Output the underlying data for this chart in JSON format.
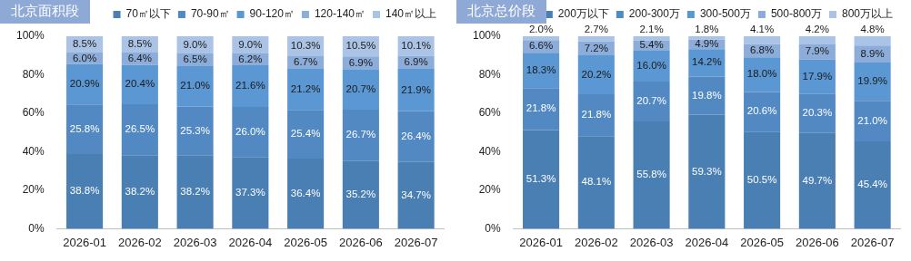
{
  "chart_data": [
    {
      "type": "bar",
      "title": "北京面积段",
      "stacked": true,
      "legend": "top",
      "grid": false,
      "categories": [
        "2026-01",
        "2026-02",
        "2026-03",
        "2026-04",
        "2026-05",
        "2026-06",
        "2026-07"
      ],
      "ylim": [
        0,
        100
      ],
      "yticks": [
        {
          "value": 0,
          "label": "0%"
        },
        {
          "value": 20,
          "label": "20%"
        },
        {
          "value": 40,
          "label": "40%"
        },
        {
          "value": 60,
          "label": "60%"
        },
        {
          "value": 80,
          "label": "80%"
        },
        {
          "value": 100,
          "label": "100%"
        }
      ],
      "series": [
        {
          "name": "70㎡以下",
          "color": "#4a7fb3",
          "values": [
            38.8,
            38.2,
            38.2,
            37.3,
            36.4,
            35.2,
            34.7
          ],
          "value_labels": [
            "38.8%",
            "38.2%",
            "38.2%",
            "37.3%",
            "36.4%",
            "35.2%",
            "34.7%"
          ]
        },
        {
          "name": "70-90㎡",
          "color": "#5289c3",
          "values": [
            25.8,
            26.5,
            25.3,
            26.0,
            25.4,
            26.7,
            26.4
          ],
          "value_labels": [
            "25.8%",
            "26.5%",
            "25.3%",
            "26.0%",
            "25.4%",
            "26.7%",
            "26.4%"
          ]
        },
        {
          "name": "90-120㎡",
          "color": "#5b97d3",
          "values": [
            20.9,
            20.4,
            21.0,
            21.6,
            21.2,
            20.7,
            21.9
          ],
          "value_labels": [
            "20.9%",
            "20.4%",
            "21.0%",
            "21.6%",
            "21.2%",
            "20.7%",
            "21.9%"
          ]
        },
        {
          "name": "120-140㎡",
          "color": "#8cadd9",
          "values": [
            6.0,
            6.4,
            6.5,
            6.2,
            6.7,
            6.9,
            6.9
          ],
          "value_labels": [
            "6.0%",
            "6.4%",
            "6.5%",
            "6.2%",
            "6.7%",
            "6.9%",
            "6.9%"
          ]
        },
        {
          "name": "140㎡以上",
          "color": "#abc4e5",
          "values": [
            8.5,
            8.5,
            9.0,
            9.0,
            10.3,
            10.5,
            10.1
          ],
          "value_labels": [
            "8.5%",
            "8.5%",
            "9.0%",
            "9.0%",
            "10.3%",
            "10.5%",
            "10.1%"
          ]
        }
      ]
    },
    {
      "type": "bar",
      "title": "北京总价段",
      "stacked": true,
      "legend": "top",
      "grid": false,
      "categories": [
        "2026-01",
        "2026-02",
        "2026-03",
        "2026-04",
        "2026-05",
        "2026-06",
        "2026-07"
      ],
      "ylim": [
        0,
        100
      ],
      "yticks": [
        {
          "value": 0,
          "label": "0%"
        },
        {
          "value": 20,
          "label": "20%"
        },
        {
          "value": 40,
          "label": "40%"
        },
        {
          "value": 60,
          "label": "60%"
        },
        {
          "value": 80,
          "label": "80%"
        },
        {
          "value": 100,
          "label": "100%"
        }
      ],
      "series": [
        {
          "name": "200万以下",
          "color": "#4a7fb3",
          "values": [
            51.3,
            48.1,
            55.8,
            59.3,
            50.5,
            49.7,
            45.4
          ],
          "value_labels": [
            "51.3%",
            "48.1%",
            "55.8%",
            "59.3%",
            "50.5%",
            "49.7%",
            "45.4%"
          ]
        },
        {
          "name": "200-300万",
          "color": "#5289c3",
          "values": [
            21.8,
            21.8,
            20.7,
            19.8,
            20.6,
            20.3,
            21.0
          ],
          "value_labels": [
            "21.8%",
            "21.8%",
            "20.7%",
            "19.8%",
            "20.6%",
            "20.3%",
            "21.0%"
          ]
        },
        {
          "name": "300-500万",
          "color": "#5b97d3",
          "values": [
            18.3,
            20.2,
            16.0,
            14.2,
            18.0,
            17.9,
            19.9
          ],
          "value_labels": [
            "18.3%",
            "20.2%",
            "16.0%",
            "14.2%",
            "18.0%",
            "17.9%",
            "19.9%"
          ]
        },
        {
          "name": "500-800万",
          "color": "#8cadd9",
          "values": [
            6.6,
            7.2,
            5.4,
            4.9,
            6.8,
            7.9,
            8.9
          ],
          "value_labels": [
            "6.6%",
            "7.2%",
            "5.4%",
            "4.9%",
            "6.8%",
            "7.9%",
            "8.9%"
          ]
        },
        {
          "name": "800万以上",
          "color": "#abc4e5",
          "values": [
            2.0,
            2.7,
            2.1,
            1.8,
            4.1,
            4.2,
            4.8
          ],
          "value_labels": [
            "2.0%",
            "2.7%",
            "2.1%",
            "1.8%",
            "4.1%",
            "4.2%",
            "4.8%"
          ]
        }
      ]
    }
  ]
}
